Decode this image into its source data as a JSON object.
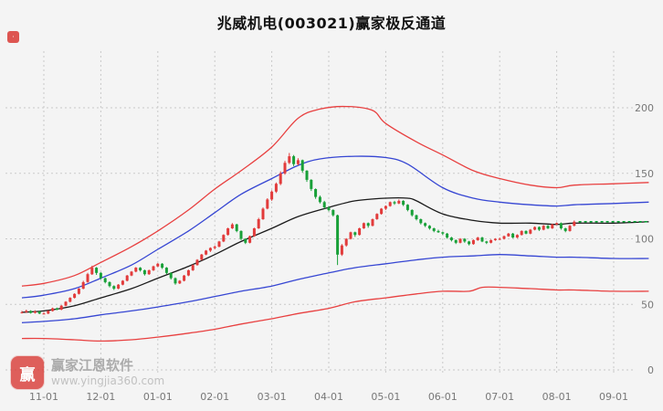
{
  "title": "兆威机电(003021)赢家极反通道",
  "watermark": {
    "logo_glyph": "赢",
    "brand": "赢家江恩软件",
    "url": "www.yingjia360.com"
  },
  "chart_data": {
    "type": "candlestick",
    "title": "兆威机电(003021)赢家极反通道",
    "x_tick_labels": [
      "11-01",
      "12-01",
      "01-01",
      "02-01",
      "03-01",
      "04-01",
      "05-01",
      "06-01",
      "07-01",
      "08-01",
      "09-01"
    ],
    "month_tick_indices": [
      5,
      18,
      31,
      44,
      57,
      70,
      83,
      96,
      109,
      122,
      135
    ],
    "y_ticks": [
      0,
      50,
      100,
      150,
      200
    ],
    "ylim": [
      0,
      215
    ],
    "x_index_range": [
      0,
      143
    ],
    "grid": true,
    "legend_position": "none",
    "colors": {
      "up": "#e23b3b",
      "down": "#18a038",
      "outer_channel": "#e84040",
      "inner_channel": "#3646d3",
      "midline": "#1a1a1a",
      "signal": "#00a832"
    },
    "ohlc_order": [
      "open",
      "high",
      "low",
      "close"
    ],
    "candles_ohlc": [
      [
        43.5,
        45,
        43,
        44
      ],
      [
        44,
        46,
        43.5,
        45
      ],
      [
        45,
        45.5,
        43,
        43.5
      ],
      [
        43.5,
        45.5,
        43,
        44.5
      ],
      [
        44.5,
        45,
        42.5,
        43
      ],
      [
        43,
        44,
        42.5,
        43
      ],
      [
        43,
        45.5,
        42.5,
        45
      ],
      [
        45,
        47.5,
        44.5,
        47
      ],
      [
        47,
        47.5,
        45.5,
        46
      ],
      [
        46,
        49.5,
        45.5,
        49
      ],
      [
        49,
        52.5,
        48.5,
        52
      ],
      [
        52,
        55.5,
        51.5,
        55
      ],
      [
        55,
        58.5,
        54.5,
        58
      ],
      [
        58,
        62.5,
        57.5,
        62
      ],
      [
        62,
        68,
        61.5,
        67
      ],
      [
        67,
        74,
        66.5,
        73
      ],
      [
        73,
        79.5,
        72.5,
        78
      ],
      [
        78,
        78.5,
        72.5,
        74
      ],
      [
        74,
        74.5,
        69,
        70
      ],
      [
        70,
        70.5,
        66,
        67
      ],
      [
        67,
        67.5,
        63,
        64
      ],
      [
        64,
        64.5,
        61,
        62
      ],
      [
        62,
        65.5,
        61.5,
        65
      ],
      [
        65,
        68.5,
        64.5,
        68
      ],
      [
        68,
        72.5,
        67.5,
        72
      ],
      [
        72,
        75.5,
        71.5,
        75
      ],
      [
        75,
        78.5,
        74.5,
        78
      ],
      [
        78,
        78.5,
        75,
        76
      ],
      [
        76,
        76.5,
        72,
        73
      ],
      [
        73,
        76.5,
        72.5,
        76
      ],
      [
        76,
        79.5,
        75.5,
        79
      ],
      [
        79,
        81.5,
        78.5,
        81
      ],
      [
        81,
        81.5,
        77,
        78
      ],
      [
        78,
        78.5,
        73,
        74
      ],
      [
        74,
        74.5,
        69,
        70
      ],
      [
        70,
        70.5,
        65,
        66
      ],
      [
        66,
        68.5,
        65.5,
        68
      ],
      [
        68,
        72.5,
        67.5,
        72
      ],
      [
        72,
        76.5,
        71.5,
        76
      ],
      [
        76,
        80.5,
        75.5,
        80
      ],
      [
        80,
        84.5,
        79.5,
        84
      ],
      [
        84,
        88.5,
        83.5,
        88
      ],
      [
        88,
        91.5,
        87.5,
        91
      ],
      [
        91,
        93.5,
        90,
        93
      ],
      [
        93,
        95,
        92,
        94
      ],
      [
        94,
        98.5,
        93.5,
        98
      ],
      [
        98,
        103.5,
        97.5,
        103
      ],
      [
        103,
        108.5,
        102.5,
        108
      ],
      [
        108,
        112,
        107.5,
        111
      ],
      [
        111,
        111.5,
        105,
        106
      ],
      [
        106,
        106.5,
        99,
        100
      ],
      [
        100,
        100.5,
        96,
        97
      ],
      [
        97,
        102.5,
        96.5,
        102
      ],
      [
        102,
        108.5,
        101.5,
        108
      ],
      [
        108,
        116,
        107.5,
        115
      ],
      [
        115,
        124,
        114.5,
        123
      ],
      [
        123,
        131,
        122.5,
        130
      ],
      [
        130,
        137,
        129,
        136
      ],
      [
        136,
        143,
        135,
        142
      ],
      [
        142,
        151.5,
        141,
        150
      ],
      [
        150,
        159.5,
        149,
        158
      ],
      [
        158,
        165.5,
        157,
        163
      ],
      [
        163,
        164,
        155.5,
        157
      ],
      [
        157,
        161.5,
        156,
        160
      ],
      [
        160,
        160.5,
        150.5,
        152
      ],
      [
        152,
        152.5,
        143.5,
        145
      ],
      [
        145,
        145.5,
        136.5,
        138
      ],
      [
        138,
        138.5,
        130.5,
        132
      ],
      [
        132,
        133,
        127,
        128
      ],
      [
        128,
        129,
        123,
        124
      ],
      [
        124,
        125,
        121,
        122
      ],
      [
        122,
        122.5,
        117,
        118
      ],
      [
        118,
        118.5,
        80,
        88
      ],
      [
        88,
        96,
        87,
        95
      ],
      [
        95,
        100.5,
        94,
        100
      ],
      [
        100,
        105.5,
        99.5,
        105
      ],
      [
        105,
        105.5,
        101.5,
        103
      ],
      [
        103,
        108.5,
        102.5,
        108
      ],
      [
        108,
        112.5,
        107.5,
        112
      ],
      [
        112,
        112.5,
        108.5,
        110
      ],
      [
        110,
        115.5,
        109.5,
        115
      ],
      [
        115,
        119.5,
        114.5,
        119
      ],
      [
        119,
        123.5,
        118.5,
        123
      ],
      [
        123,
        125.5,
        122,
        125
      ],
      [
        125,
        128.5,
        124.5,
        128
      ],
      [
        128,
        129,
        126,
        127
      ],
      [
        127,
        130,
        126.5,
        129
      ],
      [
        129,
        129.5,
        125,
        126
      ],
      [
        126,
        126.5,
        121,
        122
      ],
      [
        122,
        122.5,
        117,
        118
      ],
      [
        118,
        118.5,
        114,
        115
      ],
      [
        115,
        115.5,
        111,
        112
      ],
      [
        112,
        112.5,
        109,
        110
      ],
      [
        110,
        110.5,
        107,
        108
      ],
      [
        108,
        108.5,
        105,
        106
      ],
      [
        106,
        107,
        104.5,
        105
      ],
      [
        105,
        105.5,
        103,
        104
      ],
      [
        104,
        104.5,
        100,
        101
      ],
      [
        101,
        101.5,
        98,
        99
      ],
      [
        99,
        99.5,
        96,
        97
      ],
      [
        97,
        100.5,
        96.5,
        100
      ],
      [
        100,
        100.5,
        97,
        98
      ],
      [
        98,
        98.5,
        95,
        96
      ],
      [
        96,
        99.5,
        95.5,
        99
      ],
      [
        99,
        101.5,
        98.5,
        101
      ],
      [
        101,
        101.5,
        97.5,
        98
      ],
      [
        98,
        98.5,
        96,
        97
      ],
      [
        97,
        99.5,
        96.5,
        99
      ],
      [
        99,
        100.5,
        98.5,
        100
      ],
      [
        100,
        101,
        99,
        100
      ],
      [
        100,
        102.5,
        99.5,
        102
      ],
      [
        102,
        104.5,
        101.5,
        104
      ],
      [
        104,
        104.5,
        100.5,
        101
      ],
      [
        101,
        103.5,
        100.5,
        103
      ],
      [
        103,
        106.5,
        102.5,
        106
      ],
      [
        106,
        106.5,
        103.5,
        104
      ],
      [
        104,
        107.5,
        103.5,
        107
      ],
      [
        107,
        109.5,
        106.5,
        109
      ],
      [
        109,
        109.5,
        106,
        107
      ],
      [
        107,
        110.5,
        106.5,
        110
      ],
      [
        110,
        110.5,
        107.5,
        108
      ],
      [
        108,
        111.5,
        107.5,
        111
      ],
      [
        111,
        112.5,
        110.5,
        112
      ],
      [
        112,
        112.5,
        107,
        108
      ],
      [
        108,
        108.5,
        105,
        106
      ],
      [
        106,
        110.5,
        105.5,
        110
      ],
      [
        110,
        114,
        109.5,
        113
      ]
    ],
    "channels": [
      {
        "name": "outer-upper-red",
        "color": "#e84040",
        "anchors": [
          [
            0,
            64
          ],
          [
            5,
            66
          ],
          [
            12,
            72
          ],
          [
            18,
            82
          ],
          [
            25,
            94
          ],
          [
            31,
            106
          ],
          [
            38,
            122
          ],
          [
            44,
            138
          ],
          [
            50,
            152
          ],
          [
            57,
            170
          ],
          [
            63,
            192
          ],
          [
            68,
            199
          ],
          [
            74,
            201
          ],
          [
            80,
            198
          ],
          [
            83,
            188
          ],
          [
            90,
            174
          ],
          [
            96,
            164
          ],
          [
            103,
            152
          ],
          [
            109,
            146
          ],
          [
            116,
            141
          ],
          [
            122,
            139
          ],
          [
            126,
            141
          ],
          [
            135,
            142
          ],
          [
            143,
            143
          ]
        ]
      },
      {
        "name": "inner-upper-blue",
        "color": "#3646d3",
        "anchors": [
          [
            0,
            55
          ],
          [
            5,
            57
          ],
          [
            12,
            62
          ],
          [
            18,
            70
          ],
          [
            25,
            80
          ],
          [
            31,
            92
          ],
          [
            38,
            106
          ],
          [
            44,
            120
          ],
          [
            50,
            134
          ],
          [
            57,
            146
          ],
          [
            63,
            156
          ],
          [
            68,
            161
          ],
          [
            76,
            163
          ],
          [
            83,
            162
          ],
          [
            88,
            157
          ],
          [
            96,
            139
          ],
          [
            103,
            131
          ],
          [
            109,
            128
          ],
          [
            116,
            126
          ],
          [
            122,
            125
          ],
          [
            126,
            126
          ],
          [
            135,
            127
          ],
          [
            143,
            128
          ]
        ]
      },
      {
        "name": "midline-black",
        "color": "#1a1a1a",
        "anchors": [
          [
            0,
            44
          ],
          [
            5,
            45
          ],
          [
            12,
            49
          ],
          [
            18,
            55
          ],
          [
            25,
            62
          ],
          [
            31,
            70
          ],
          [
            38,
            79
          ],
          [
            44,
            88
          ],
          [
            50,
            98
          ],
          [
            57,
            108
          ],
          [
            63,
            117
          ],
          [
            70,
            124
          ],
          [
            76,
            129
          ],
          [
            83,
            131
          ],
          [
            88,
            131
          ],
          [
            90,
            129
          ],
          [
            96,
            119
          ],
          [
            103,
            114
          ],
          [
            109,
            112
          ],
          [
            116,
            112
          ],
          [
            122,
            111
          ],
          [
            126,
            112
          ],
          [
            135,
            112
          ],
          [
            143,
            113
          ]
        ]
      },
      {
        "name": "inner-lower-blue",
        "color": "#3646d3",
        "anchors": [
          [
            0,
            36
          ],
          [
            5,
            37
          ],
          [
            12,
            39
          ],
          [
            18,
            42
          ],
          [
            25,
            45
          ],
          [
            31,
            48
          ],
          [
            38,
            52
          ],
          [
            44,
            56
          ],
          [
            50,
            60
          ],
          [
            57,
            64
          ],
          [
            63,
            69
          ],
          [
            70,
            74
          ],
          [
            76,
            78
          ],
          [
            83,
            81
          ],
          [
            90,
            84
          ],
          [
            96,
            86
          ],
          [
            103,
            87
          ],
          [
            109,
            88
          ],
          [
            116,
            87
          ],
          [
            122,
            86
          ],
          [
            126,
            86
          ],
          [
            135,
            85
          ],
          [
            143,
            85
          ]
        ]
      },
      {
        "name": "outer-lower-red",
        "color": "#e84040",
        "anchors": [
          [
            0,
            24
          ],
          [
            5,
            24
          ],
          [
            12,
            23
          ],
          [
            18,
            22
          ],
          [
            25,
            23
          ],
          [
            31,
            25
          ],
          [
            38,
            28
          ],
          [
            44,
            31
          ],
          [
            50,
            35
          ],
          [
            57,
            39
          ],
          [
            63,
            43
          ],
          [
            70,
            47
          ],
          [
            76,
            52
          ],
          [
            83,
            55
          ],
          [
            90,
            58
          ],
          [
            96,
            60
          ],
          [
            102,
            60
          ],
          [
            105,
            63
          ],
          [
            109,
            63
          ],
          [
            116,
            62
          ],
          [
            122,
            61
          ],
          [
            126,
            61
          ],
          [
            135,
            60
          ],
          [
            143,
            60
          ]
        ]
      }
    ],
    "signal_line": {
      "value": 113,
      "from_index": 127,
      "to_index": 143,
      "color": "#00a832",
      "style": "dotted"
    }
  }
}
